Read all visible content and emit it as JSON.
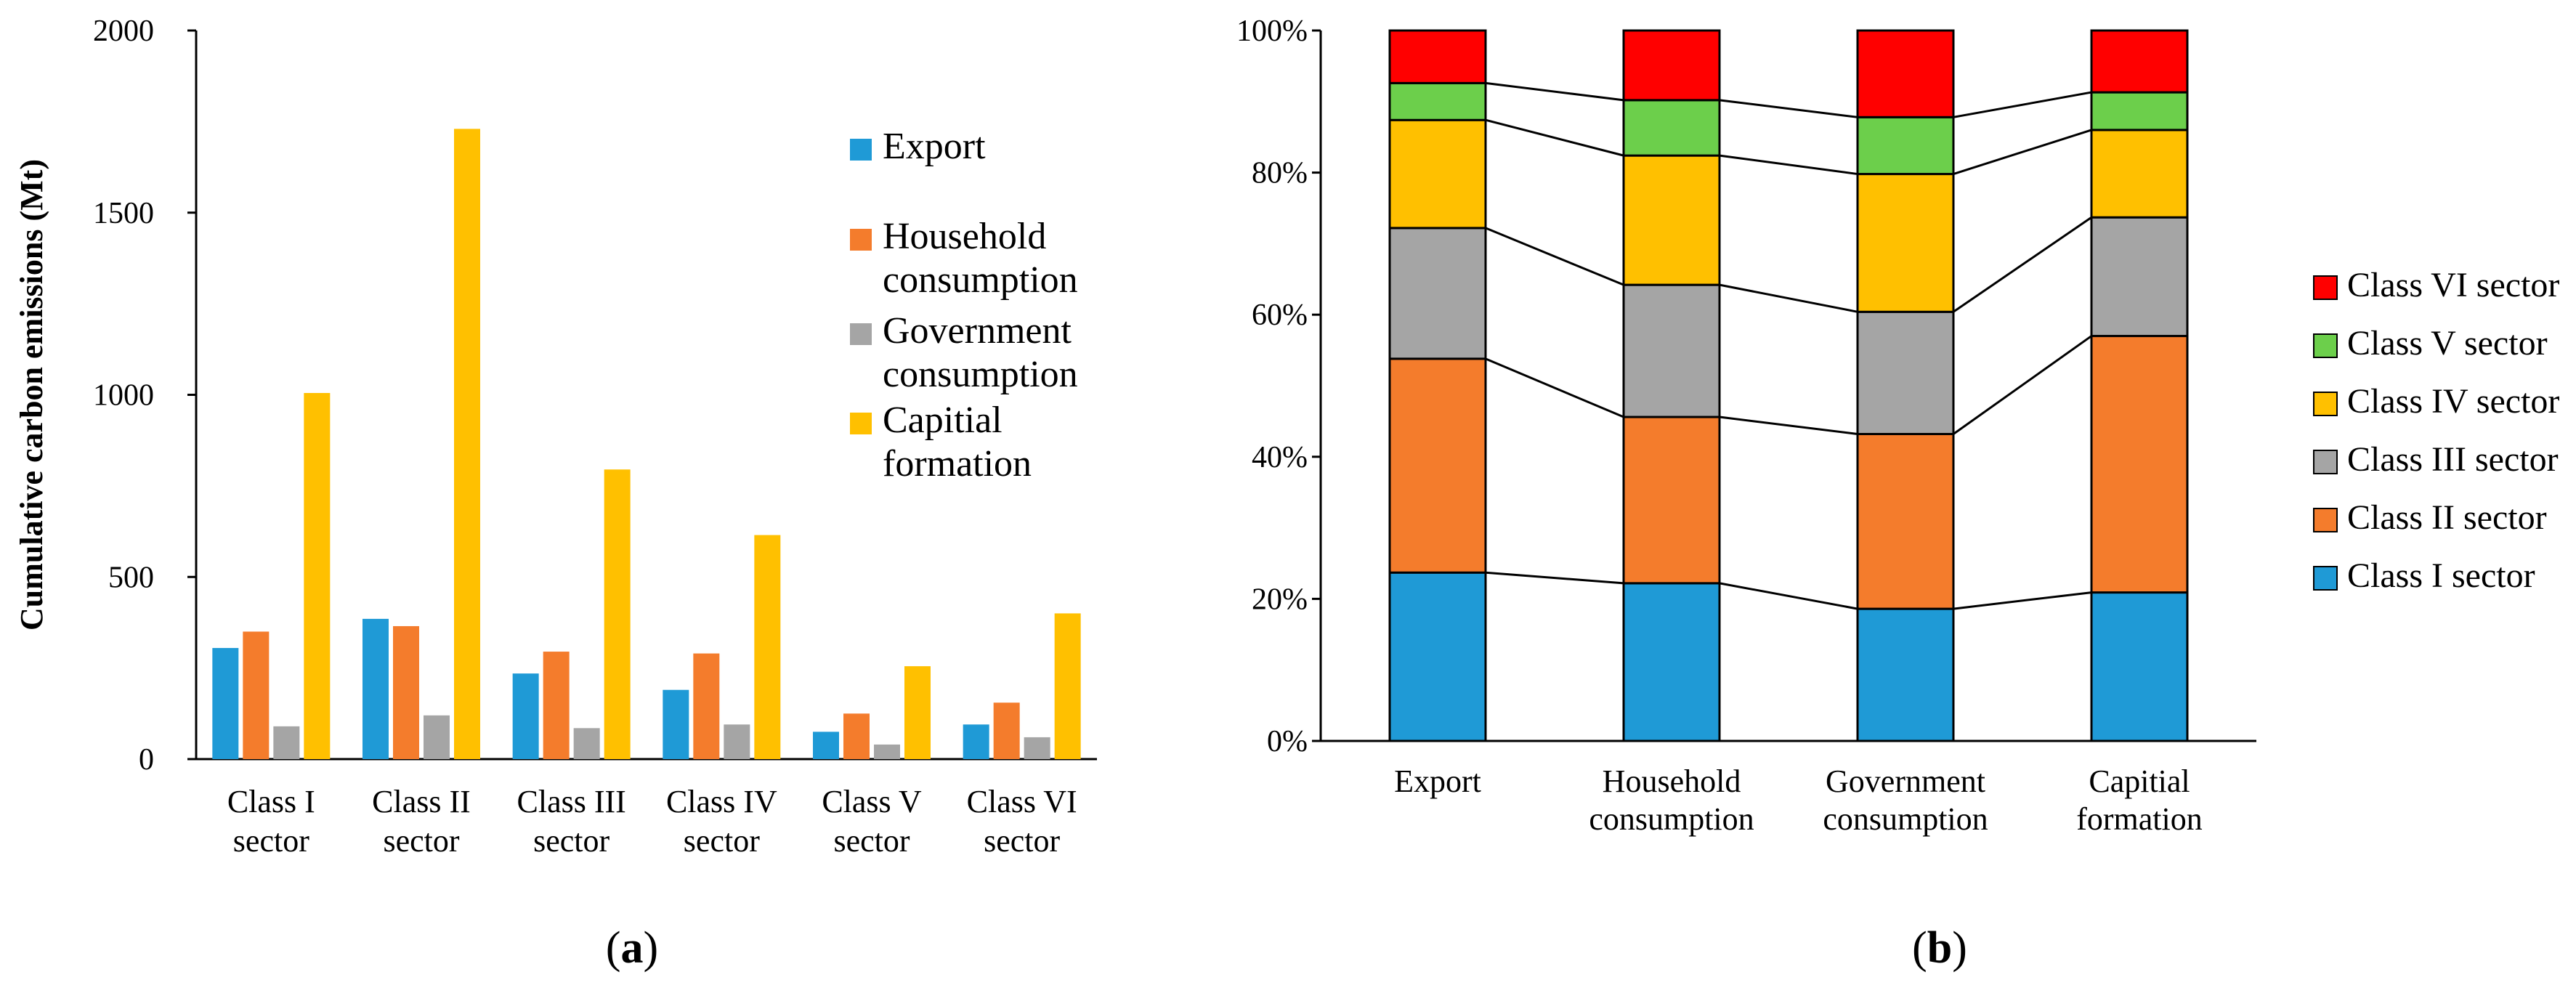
{
  "chart_data": [
    {
      "type": "bar",
      "panel_label": {
        "open": "(",
        "letter": "a",
        "close": ")"
      },
      "ylabel": "Cumulative carbon emissions (Mt)",
      "ylim": [
        0,
        2000
      ],
      "yticks": [
        "0",
        "500",
        "1000",
        "1500",
        "2000"
      ],
      "categories": [
        [
          "Class I",
          "sector"
        ],
        [
          "Class II",
          "sector"
        ],
        [
          "Class III",
          "sector"
        ],
        [
          "Class IV",
          "sector"
        ],
        [
          "Class V",
          "sector"
        ],
        [
          "Class VI",
          "sector"
        ]
      ],
      "series": [
        {
          "name": [
            "Export"
          ],
          "color": "#1f9ad6",
          "values": [
            305,
            385,
            235,
            190,
            75,
            95
          ]
        },
        {
          "name": [
            "Household",
            "consumption"
          ],
          "color": "#f47c2c",
          "values": [
            350,
            365,
            295,
            290,
            125,
            155
          ]
        },
        {
          "name": [
            "Government",
            "consumption"
          ],
          "color": "#a5a5a5",
          "values": [
            90,
            120,
            85,
            95,
            40,
            60
          ]
        },
        {
          "name": [
            "Capitial",
            "formation"
          ],
          "color": "#ffc000",
          "values": [
            1005,
            1730,
            795,
            615,
            255,
            400
          ]
        }
      ]
    },
    {
      "type": "stacked_bar_100",
      "panel_label": {
        "open": "(",
        "letter": "b",
        "close": ")"
      },
      "ylim": [
        0,
        100
      ],
      "yticks": [
        "0%",
        "20%",
        "40%",
        "60%",
        "80%",
        "100%"
      ],
      "categories": [
        [
          "Export"
        ],
        [
          "Household",
          "consumption"
        ],
        [
          "Government",
          "consumption"
        ],
        [
          "Capitial",
          "formation"
        ]
      ],
      "series": [
        {
          "name": "Class I sector",
          "color": "#1f9ad6",
          "values": [
            23.7,
            22.2,
            18.6,
            20.9
          ]
        },
        {
          "name": "Class II sector",
          "color": "#f47c2c",
          "values": [
            30.1,
            23.4,
            24.6,
            36.1
          ]
        },
        {
          "name": "Class III sector",
          "color": "#a5a5a5",
          "values": [
            18.4,
            18.6,
            17.2,
            16.7
          ]
        },
        {
          "name": "Class IV sector",
          "color": "#ffc000",
          "values": [
            15.2,
            18.2,
            19.4,
            12.3
          ]
        },
        {
          "name": "Class V sector",
          "color": "#6ccf4b",
          "values": [
            5.2,
            7.8,
            8.0,
            5.3
          ]
        },
        {
          "name": "Class VI sector",
          "color": "#ff0000",
          "values": [
            7.4,
            9.8,
            12.2,
            8.7
          ]
        }
      ]
    }
  ]
}
